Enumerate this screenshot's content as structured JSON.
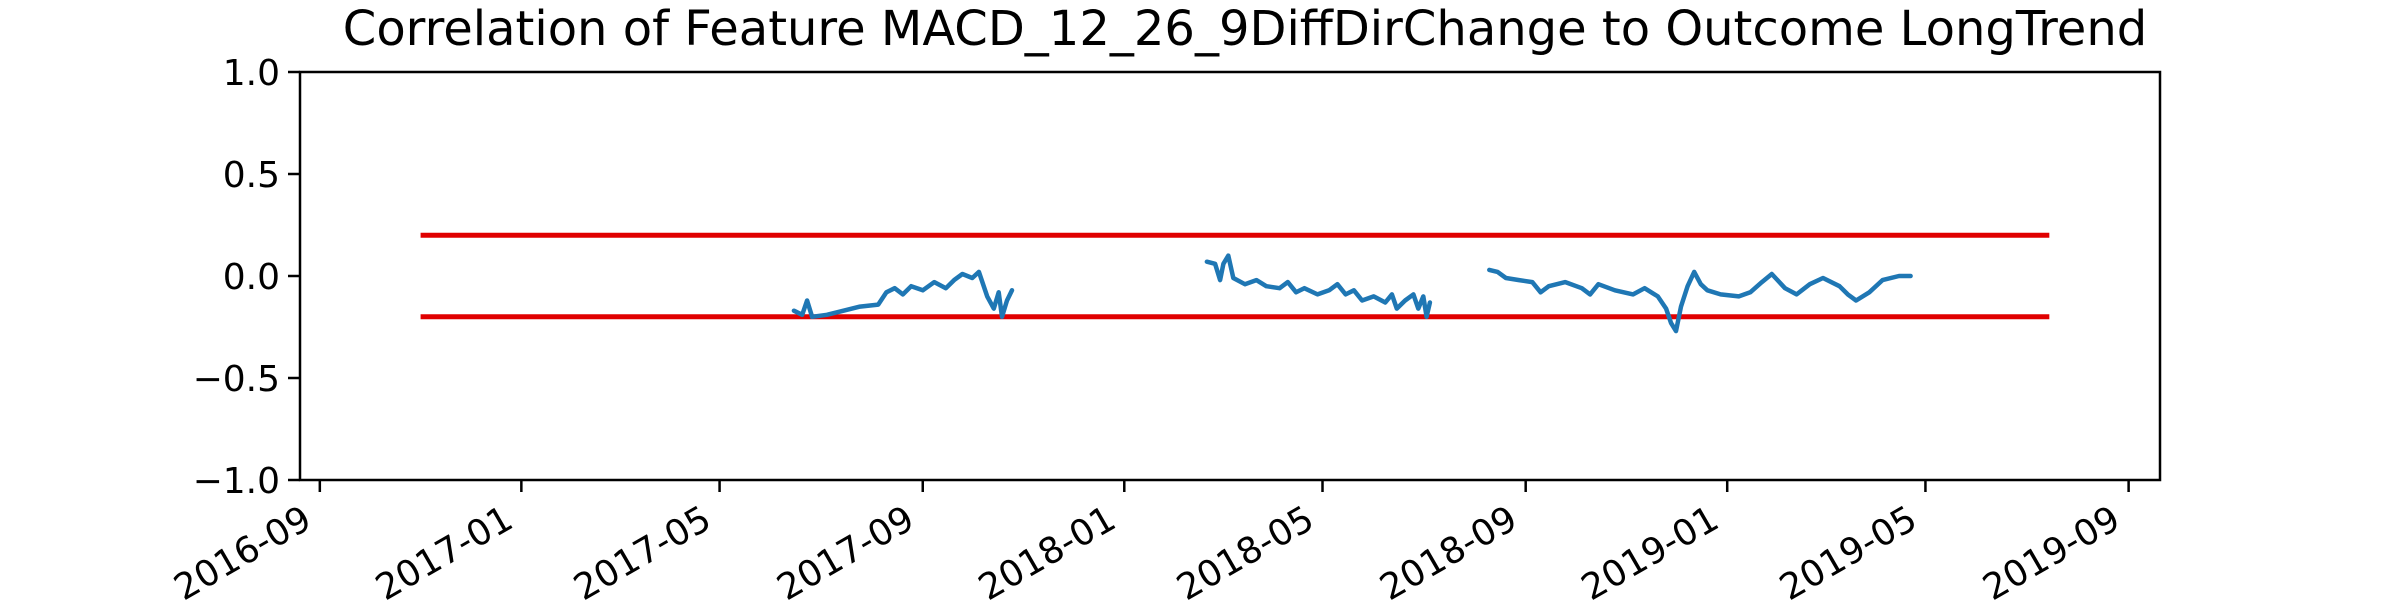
{
  "chart_data": {
    "type": "line",
    "title": "Correlation of Feature MACD_12_26_9DiffDirChange to Outcome LongTrend",
    "xlabel": "",
    "ylabel": "",
    "xlim": [
      "2016-08-20",
      "2019-09-20"
    ],
    "ylim": [
      -1.0,
      1.0
    ],
    "x_ticks": [
      "2016-09",
      "2017-01",
      "2017-05",
      "2017-09",
      "2018-01",
      "2018-05",
      "2018-09",
      "2019-01",
      "2019-05",
      "2019-09"
    ],
    "y_ticks": [
      "1.0",
      "0.5",
      "0.0",
      "−0.5",
      "−1.0"
    ],
    "y_tick_values": [
      1.0,
      0.5,
      0.0,
      -0.5,
      -1.0
    ],
    "grid": false,
    "colors": {
      "series": "#1f77b4",
      "threshold": "#e00000"
    },
    "thresholds": [
      {
        "x": [
          "2016-11-01",
          "2019-07-15"
        ],
        "y": 0.2
      },
      {
        "x": [
          "2016-11-01",
          "2019-07-15"
        ],
        "y": -0.2
      }
    ],
    "series": [
      {
        "segments": [
          [
            [
              "2017-06-15",
              -0.17
            ],
            [
              "2017-06-20",
              -0.19
            ],
            [
              "2017-06-23",
              -0.12
            ],
            [
              "2017-06-26",
              -0.2
            ],
            [
              "2017-07-05",
              -0.19
            ],
            [
              "2017-07-15",
              -0.17
            ],
            [
              "2017-07-25",
              -0.15
            ],
            [
              "2017-08-05",
              -0.14
            ],
            [
              "2017-08-10",
              -0.08
            ],
            [
              "2017-08-15",
              -0.06
            ],
            [
              "2017-08-20",
              -0.09
            ],
            [
              "2017-08-25",
              -0.05
            ],
            [
              "2017-09-01",
              -0.07
            ],
            [
              "2017-09-08",
              -0.03
            ],
            [
              "2017-09-15",
              -0.06
            ],
            [
              "2017-09-20",
              -0.02
            ],
            [
              "2017-09-25",
              0.01
            ],
            [
              "2017-10-01",
              -0.01
            ],
            [
              "2017-10-05",
              0.02
            ],
            [
              "2017-10-10",
              -0.1
            ],
            [
              "2017-10-14",
              -0.16
            ],
            [
              "2017-10-17",
              -0.08
            ],
            [
              "2017-10-19",
              -0.2
            ],
            [
              "2017-10-22",
              -0.12
            ],
            [
              "2017-10-25",
              -0.07
            ]
          ],
          [
            [
              "2018-02-20",
              0.07
            ],
            [
              "2018-02-25",
              0.06
            ],
            [
              "2018-02-28",
              -0.02
            ],
            [
              "2018-03-02",
              0.06
            ],
            [
              "2018-03-05",
              0.1
            ],
            [
              "2018-03-08",
              -0.01
            ],
            [
              "2018-03-15",
              -0.04
            ],
            [
              "2018-03-22",
              -0.02
            ],
            [
              "2018-03-28",
              -0.05
            ],
            [
              "2018-04-05",
              -0.06
            ],
            [
              "2018-04-10",
              -0.03
            ],
            [
              "2018-04-15",
              -0.08
            ],
            [
              "2018-04-20",
              -0.06
            ],
            [
              "2018-04-28",
              -0.09
            ],
            [
              "2018-05-05",
              -0.07
            ],
            [
              "2018-05-10",
              -0.04
            ],
            [
              "2018-05-15",
              -0.09
            ],
            [
              "2018-05-20",
              -0.07
            ],
            [
              "2018-05-25",
              -0.12
            ],
            [
              "2018-06-01",
              -0.1
            ],
            [
              "2018-06-08",
              -0.13
            ],
            [
              "2018-06-12",
              -0.09
            ],
            [
              "2018-06-15",
              -0.16
            ],
            [
              "2018-06-20",
              -0.12
            ],
            [
              "2018-06-25",
              -0.09
            ],
            [
              "2018-06-28",
              -0.16
            ],
            [
              "2018-07-01",
              -0.1
            ],
            [
              "2018-07-03",
              -0.2
            ],
            [
              "2018-07-05",
              -0.13
            ]
          ],
          [
            [
              "2018-08-10",
              0.03
            ],
            [
              "2018-08-15",
              0.02
            ],
            [
              "2018-08-20",
              -0.01
            ],
            [
              "2018-08-28",
              -0.02
            ],
            [
              "2018-09-05",
              -0.03
            ],
            [
              "2018-09-10",
              -0.08
            ],
            [
              "2018-09-15",
              -0.05
            ],
            [
              "2018-09-25",
              -0.03
            ],
            [
              "2018-10-05",
              -0.06
            ],
            [
              "2018-10-10",
              -0.09
            ],
            [
              "2018-10-15",
              -0.04
            ],
            [
              "2018-10-25",
              -0.07
            ],
            [
              "2018-11-05",
              -0.09
            ],
            [
              "2018-11-12",
              -0.06
            ],
            [
              "2018-11-20",
              -0.1
            ],
            [
              "2018-11-25",
              -0.16
            ],
            [
              "2018-11-28",
              -0.23
            ],
            [
              "2018-12-01",
              -0.27
            ],
            [
              "2018-12-04",
              -0.15
            ],
            [
              "2018-12-08",
              -0.05
            ],
            [
              "2018-12-12",
              0.02
            ],
            [
              "2018-12-16",
              -0.04
            ],
            [
              "2018-12-20",
              -0.07
            ],
            [
              "2018-12-28",
              -0.09
            ],
            [
              "2019-01-08",
              -0.1
            ],
            [
              "2019-01-15",
              -0.08
            ],
            [
              "2019-01-22",
              -0.03
            ],
            [
              "2019-01-28",
              0.01
            ],
            [
              "2019-02-05",
              -0.06
            ],
            [
              "2019-02-12",
              -0.09
            ],
            [
              "2019-02-20",
              -0.04
            ],
            [
              "2019-02-28",
              -0.01
            ],
            [
              "2019-03-10",
              -0.05
            ],
            [
              "2019-03-15",
              -0.09
            ],
            [
              "2019-03-20",
              -0.12
            ],
            [
              "2019-03-28",
              -0.08
            ],
            [
              "2019-04-05",
              -0.02
            ],
            [
              "2019-04-15",
              0.0
            ],
            [
              "2019-04-22",
              0.0
            ]
          ]
        ]
      }
    ]
  }
}
